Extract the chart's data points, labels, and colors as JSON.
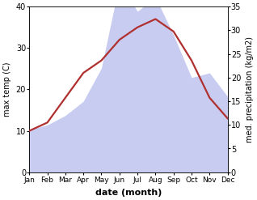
{
  "months": [
    "Jan",
    "Feb",
    "Mar",
    "Apr",
    "May",
    "Jun",
    "Jul",
    "Aug",
    "Sep",
    "Oct",
    "Nov",
    "Dec"
  ],
  "month_x": [
    1,
    2,
    3,
    4,
    5,
    6,
    7,
    8,
    9,
    10,
    11,
    12
  ],
  "temperature": [
    10,
    12,
    18,
    24,
    27,
    32,
    35,
    37,
    34,
    27,
    18,
    13
  ],
  "precipitation": [
    9,
    10,
    12,
    15,
    22,
    40,
    34,
    37,
    29,
    20,
    21,
    16
  ],
  "temp_color": "#b03030",
  "precip_fill_color": "#c8ccf0",
  "ylabel_left": "max temp (C)",
  "ylabel_right": "med. precipitation (kg/m2)",
  "xlabel": "date (month)",
  "ylim_left": [
    0,
    40
  ],
  "ylim_right": [
    0,
    35
  ],
  "yticks_left": [
    0,
    10,
    20,
    30,
    40
  ],
  "yticks_right": [
    0,
    5,
    10,
    15,
    20,
    25,
    30,
    35
  ],
  "temp_lw": 1.6,
  "figsize": [
    3.18,
    2.47
  ],
  "dpi": 100
}
